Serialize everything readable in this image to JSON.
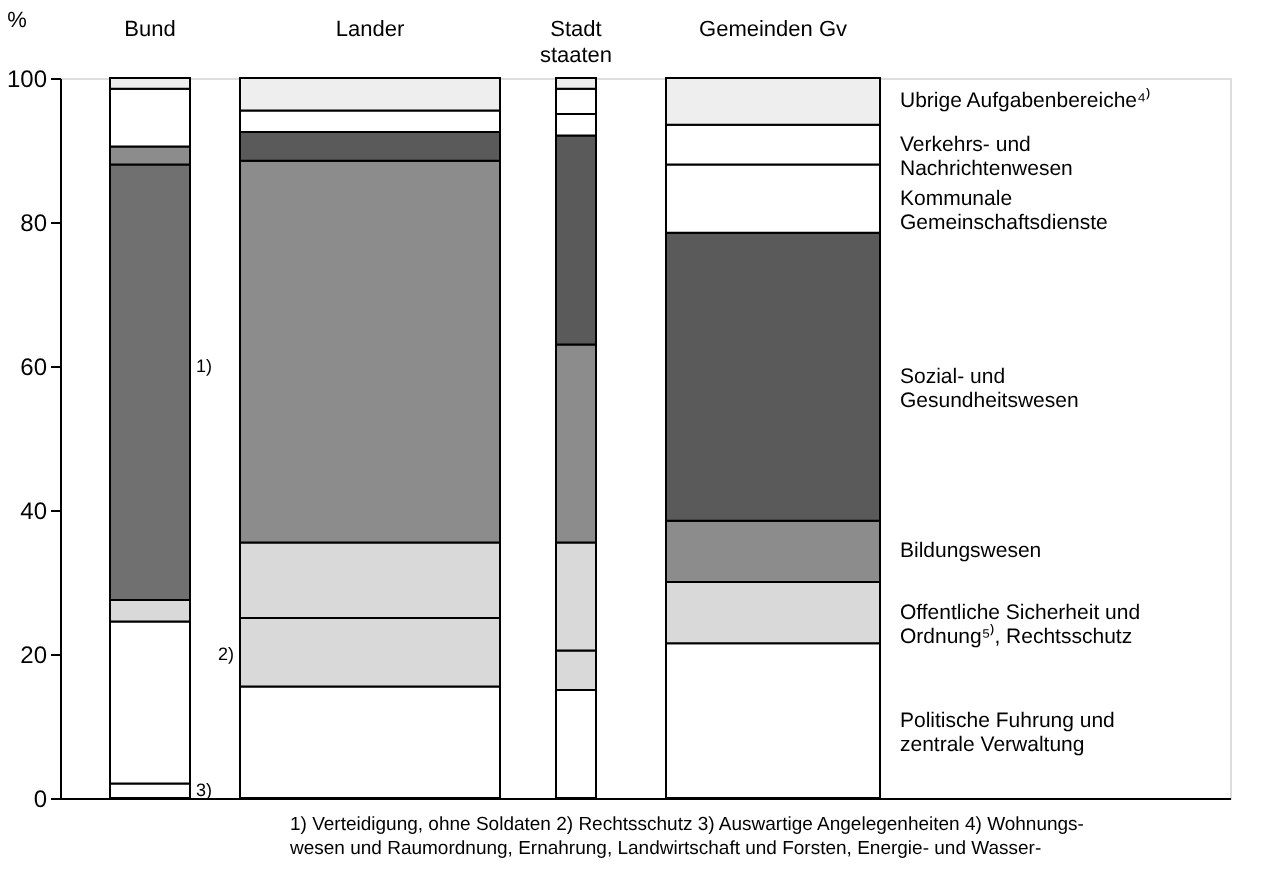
{
  "chart_data": {
    "type": "bar",
    "stacked": true,
    "ylabel": "%",
    "categories": [
      "Bund",
      "Lander",
      "Stadt\nstaaten",
      "Gemeinden Gv"
    ],
    "ylim": [
      0,
      100
    ],
    "yticks": [
      0,
      20,
      40,
      60,
      80,
      100
    ],
    "grid": false,
    "series": [
      {
        "color": "#ffffff",
        "values": [
          2,
          0,
          0,
          0
        ]
      },
      {
        "name": "Politische Fuhrung und\nzentrale Verwaltung",
        "color": "#ffffff",
        "values": [
          22.5,
          15.5,
          15,
          21.5
        ]
      },
      {
        "color": "#d9d9d9",
        "values": [
          0,
          9.5,
          5.5,
          0
        ]
      },
      {
        "name": "Offentliche Sicherheit und\nOrdnung⁵⁾, Rechtsschutz",
        "color": "#d9d9d9",
        "values": [
          3,
          10.5,
          15,
          8.5
        ]
      },
      {
        "color": "#707070",
        "values": [
          60.5,
          0,
          0,
          0
        ]
      },
      {
        "name": "Bildungswesen",
        "color": "#8c8c8c",
        "values": [
          2.5,
          53,
          27.5,
          8.5
        ]
      },
      {
        "name": "Sozial- und\nGesundheitswesen",
        "color": "#5a5a5a",
        "values": [
          0,
          4,
          29,
          40
        ]
      },
      {
        "name": "Kommunale\nGemeinschaftsdienste",
        "color": "#ffffff",
        "values": [
          0,
          0,
          3,
          9.5
        ]
      },
      {
        "name": "Verkehrs- und\nNachrichtenwesen",
        "color": "#ffffff",
        "values": [
          8,
          3,
          3.5,
          5.5
        ]
      },
      {
        "name": "Ubrige Aufgabenbereiche⁴⁾",
        "color": "#eeeeee",
        "values": [
          1.5,
          4.5,
          1.5,
          6.5
        ]
      }
    ],
    "annotations": [
      "1)",
      "2)",
      "3)",
      "1) Verteidigung, ohne Soldaten   2) Rechtsschutz   3) Auswartige Angelegenheiten   4) Wohnungs-\nwesen und Raumordnung, Ernahrung, Landwirtschaft und Forsten, Energie- und Wasser-"
    ]
  }
}
